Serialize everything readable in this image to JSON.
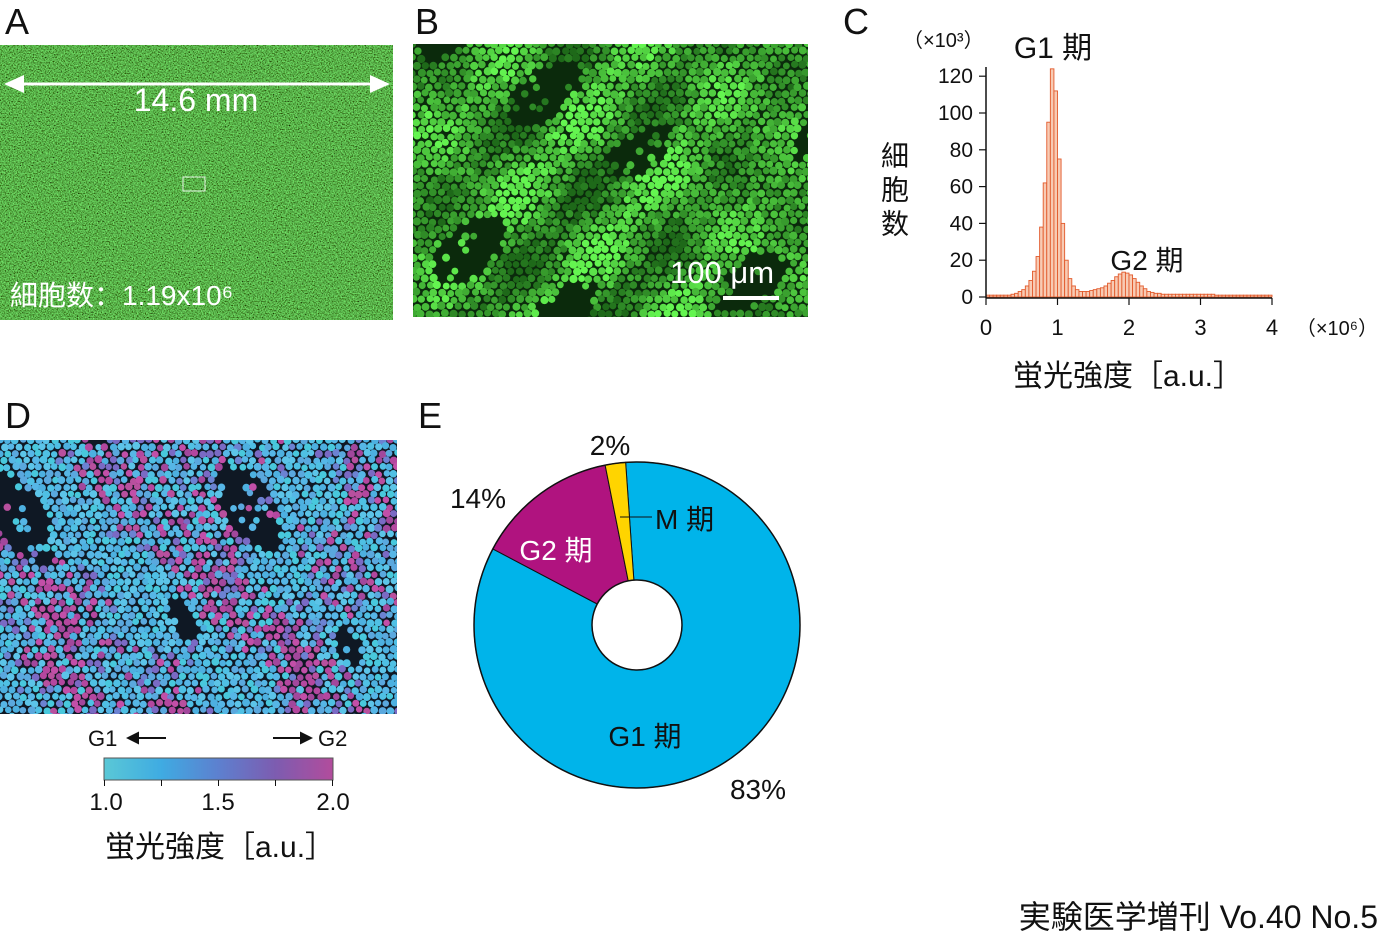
{
  "figure": {
    "footer": "実験医学増刊 Vo.40 No.5"
  },
  "panel_a": {
    "label": "A",
    "width_text": "14.6 mm",
    "cell_count_text": "細胞数：1.19x10⁶"
  },
  "panel_b": {
    "label": "B",
    "scale_bar_text": "100 μm"
  },
  "panel_c": {
    "label": "C"
  },
  "panel_d": {
    "label": "D",
    "left_label": "G1",
    "right_label": "G2",
    "colorbar": {
      "range": [
        1.0,
        2.0
      ],
      "tick_labels": [
        "1.0",
        "1.5",
        "2.0"
      ],
      "label": "蛍光強度［a.u.］",
      "colors": [
        "#5ac8d6",
        "#3fabe2",
        "#5d80cf",
        "#7d5cb0",
        "#b24c9c"
      ]
    }
  },
  "panel_e": {
    "label": "E"
  },
  "chart_data": [
    {
      "type": "bar",
      "title": "",
      "xlabel": "蛍光強度［a.u.］",
      "ylabel": "細胞数",
      "x_unit": "（×10⁶）",
      "y_unit": "（×10³）",
      "xlim": [
        0,
        4
      ],
      "ylim": [
        0,
        125
      ],
      "x_ticks": [
        "0",
        "1",
        "2",
        "3",
        "4"
      ],
      "y_ticks": [
        "0",
        "20",
        "40",
        "60",
        "80",
        "100",
        "120"
      ],
      "peak_labels": [
        "G1 期",
        "G2 期"
      ],
      "grid": false,
      "bar_color": "#e25a2b",
      "x_start": 0,
      "bin_width": 0.05,
      "values": [
        1,
        1,
        1,
        1,
        1,
        1,
        1,
        1.5,
        2,
        3,
        4,
        6,
        9,
        14,
        22,
        38,
        62,
        95,
        124,
        112,
        75,
        40,
        20,
        10,
        6,
        4,
        3,
        3,
        3,
        3.5,
        4,
        4.5,
        5,
        6,
        7.5,
        9,
        11,
        12.5,
        13.5,
        13,
        12,
        10,
        8,
        6,
        4.5,
        3,
        2.5,
        2,
        2,
        1.5,
        1.5,
        1.5,
        1.5,
        1.5,
        1.5,
        1.5,
        1.5,
        1.5,
        1.5,
        1.5,
        1.5,
        1.5,
        1.5,
        1.5,
        1,
        1,
        1,
        1,
        1,
        1,
        1,
        1,
        1,
        1,
        1,
        1,
        1,
        1,
        1,
        1
      ]
    },
    {
      "type": "pie",
      "donut": true,
      "slices": [
        {
          "name": "G1 期",
          "value": 83,
          "label": "83%",
          "color": "#00b4ea"
        },
        {
          "name": "G2 期",
          "value": 14,
          "label": "14%",
          "color": "#b0137f"
        },
        {
          "name": "M 期",
          "value": 2,
          "label": "2%",
          "color": "#ffd400"
        }
      ]
    }
  ]
}
